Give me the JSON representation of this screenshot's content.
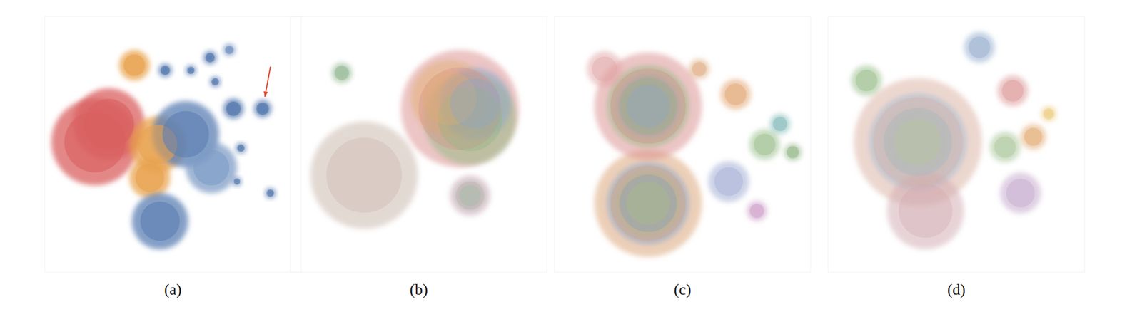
{
  "chart_data": [
    {
      "type": "scatter",
      "title": "(a)",
      "tick_labels": false,
      "xlim": [
        0,
        100
      ],
      "ylim": [
        0,
        100
      ],
      "x": [
        19.6,
        25,
        35,
        44,
        41,
        55,
        65,
        45,
        47,
        57,
        64.5,
        72,
        66.5,
        73.6,
        85,
        76.5,
        88,
        75
      ],
      "values": [
        51,
        58,
        81,
        50,
        37,
        54,
        41,
        20,
        79,
        79,
        84,
        87,
        74.5,
        64,
        64,
        48.6,
        31,
        35.5
      ],
      "sizes": [
        17,
        14,
        6,
        11,
        8,
        13,
        10,
        11,
        2.6,
        2,
        2.6,
        2.3,
        2,
        4,
        3.4,
        2,
        2,
        1.7
      ],
      "colors": [
        "#d9605f",
        "#d9605f",
        "#e8a24e",
        "#e8a24e",
        "#e8a24e",
        "#5b7fb3",
        "#7d9cc6",
        "#5b7fb3",
        "#4f74ab",
        "#4f74ab",
        "#4f74ab",
        "#6f8fbd",
        "#4f74ab",
        "#4f74ab",
        "#4f74ab",
        "#4f74ab",
        "#4f74ab",
        "#4f74ab"
      ]
    },
    {
      "type": "scatter",
      "title": "(b)",
      "tick_labels": false,
      "xlim": [
        0,
        100
      ],
      "ylim": [
        0,
        100
      ],
      "x": [
        66,
        70,
        62,
        72,
        70,
        70,
        28.7,
        20
      ],
      "values": [
        64,
        60,
        68,
        66,
        30,
        30,
        38,
        78
      ],
      "sizes": [
        23,
        18,
        15,
        14,
        8,
        6,
        21,
        4
      ],
      "colors": [
        "#d98b8b",
        "#8fb87f",
        "#e0b070",
        "#8aa6c8",
        "#c9a3b8",
        "#9fc0a0",
        "#c8b4a8",
        "#7aa77a"
      ]
    },
    {
      "type": "scatter",
      "title": "(c)",
      "tick_labels": false,
      "xlim": [
        0,
        100
      ],
      "ylim": [
        0,
        100
      ],
      "x": [
        36.6,
        36.6,
        36.6,
        36.6,
        36.6,
        36.6,
        19.6,
        70.7,
        82,
        68,
        79,
        88,
        56.5,
        93
      ],
      "values": [
        27,
        27,
        27,
        65,
        65,
        65,
        79.5,
        69.6,
        50,
        35.5,
        24,
        58,
        79.5,
        47
      ],
      "sizes": [
        21,
        16,
        12,
        21,
        16,
        12,
        7,
        6,
        6,
        8,
        4,
        4,
        4,
        3.4
      ],
      "colors": [
        "#d9a070",
        "#7f9fcc",
        "#a8c080",
        "#d98b8b",
        "#8fb87f",
        "#8aa6c8",
        "#e0a0a0",
        "#e09a60",
        "#8fb87f",
        "#9aa6d0",
        "#c58fc0",
        "#6fb0b0",
        "#d9a070",
        "#7faa6f"
      ]
    },
    {
      "type": "scatter",
      "title": "(d)",
      "tick_labels": false,
      "xlim": [
        0,
        100
      ],
      "ylim": [
        0,
        100
      ],
      "x": [
        35,
        35,
        35,
        38,
        59,
        15,
        72,
        80,
        69,
        75,
        86
      ],
      "values": [
        51,
        51,
        51,
        24,
        88,
        75,
        71,
        53,
        49,
        31,
        62
      ],
      "sizes": [
        25,
        19,
        13,
        15,
        6,
        6,
        6,
        5,
        6,
        8,
        3
      ],
      "colors": [
        "#d9b0a0",
        "#a0b8d0",
        "#b8c898",
        "#d0a8b0",
        "#8aa6c8",
        "#8fb87f",
        "#d98b8b",
        "#e0a060",
        "#a0c090",
        "#c0a0c8",
        "#e8c060"
      ]
    }
  ]
}
